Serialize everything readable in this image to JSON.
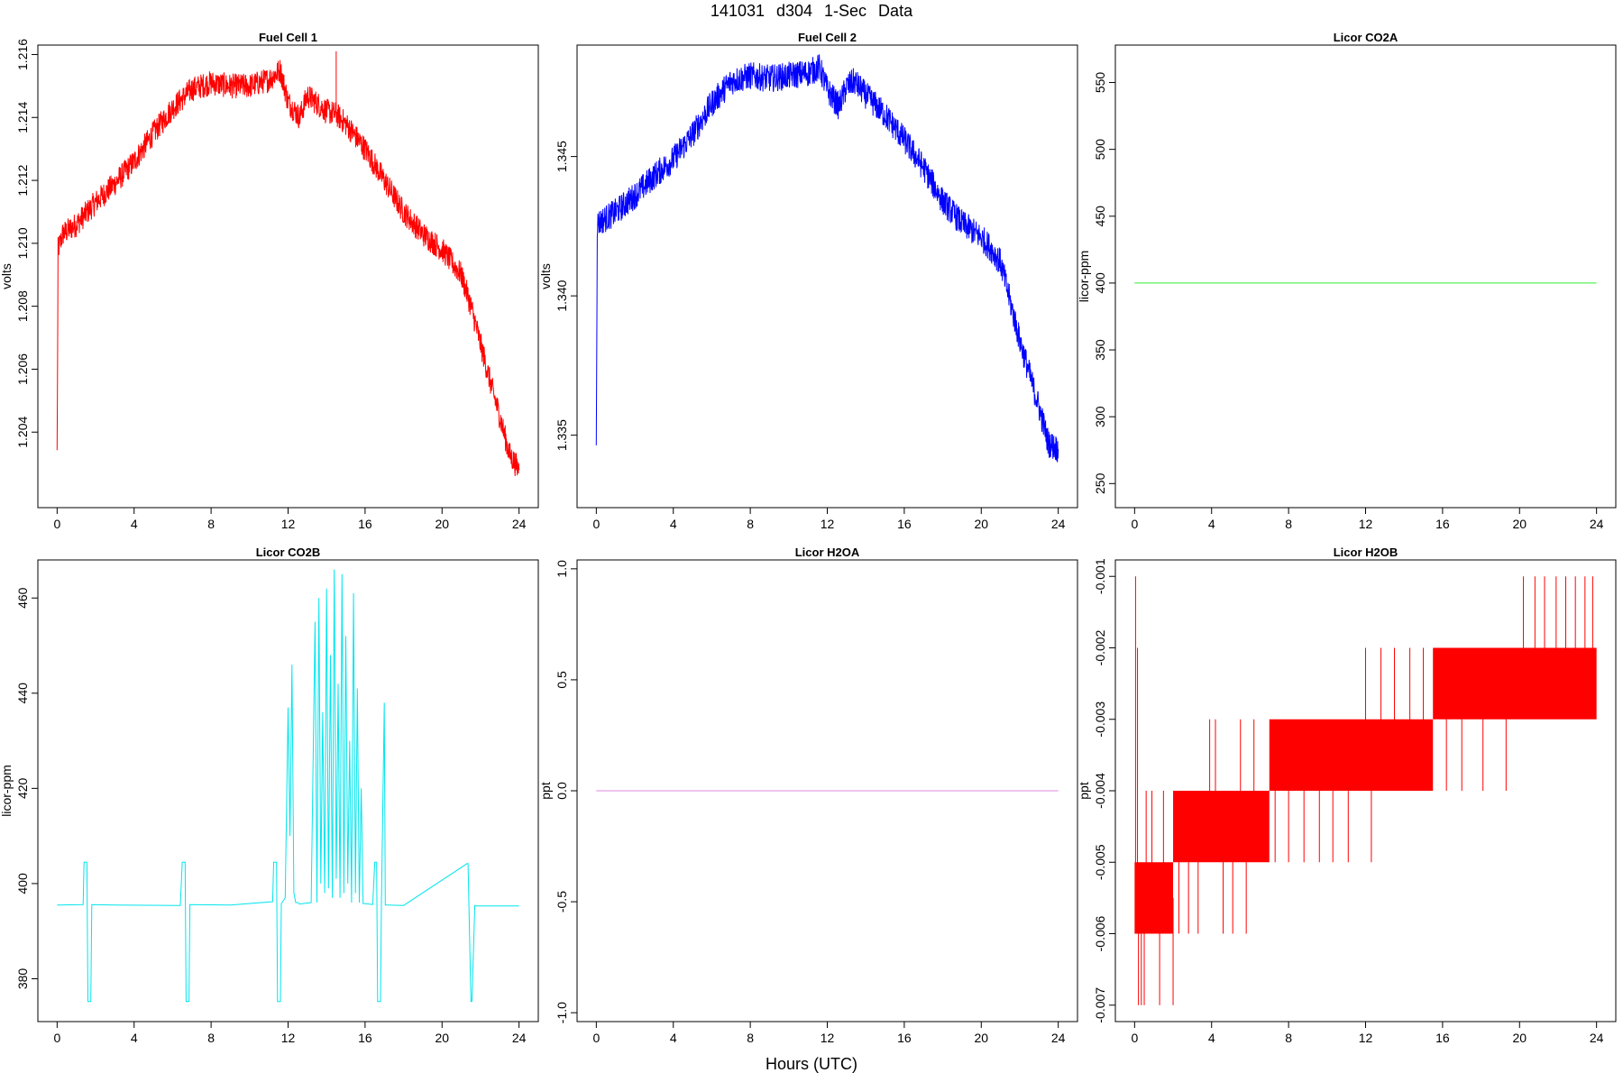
{
  "figure": {
    "title": "141031   d304   1-Sec Data",
    "xlabel": "Hours (UTC)"
  },
  "chart_data": [
    {
      "type": "line",
      "title": "Fuel Cell 1",
      "ylabel": "volts",
      "color": "#ff0000",
      "xlim": [
        -1,
        25
      ],
      "ylim": [
        1.2016,
        1.2163
      ],
      "xticks": [
        0,
        4,
        8,
        12,
        16,
        20,
        24
      ],
      "yticks": [
        1.204,
        1.206,
        1.208,
        1.21,
        1.212,
        1.214,
        1.216
      ],
      "ytick_labels": [
        "1.204",
        "1.206",
        "1.208",
        "1.210",
        "1.212",
        "1.214",
        "1.216"
      ],
      "noise": 0.0004,
      "x": [
        0,
        0.05,
        0.3,
        1,
        2,
        3,
        4,
        5,
        6,
        7,
        8,
        9,
        10,
        11,
        11.6,
        12,
        12.6,
        13,
        14,
        14.5,
        15,
        16,
        17,
        18,
        19,
        20,
        20.5,
        21,
        21.5,
        22,
        22.5,
        23,
        23.5,
        24
      ],
      "values": [
        1.2033,
        1.2098,
        1.2103,
        1.2106,
        1.2113,
        1.2119,
        1.2126,
        1.2135,
        1.2143,
        1.2149,
        1.2151,
        1.215,
        1.215,
        1.2152,
        1.2155,
        1.2145,
        1.214,
        1.2147,
        1.2142,
        1.2141,
        1.2138,
        1.213,
        1.212,
        1.211,
        1.2103,
        1.2098,
        1.2094,
        1.209,
        1.208,
        1.2068,
        1.2056,
        1.2045,
        1.2033,
        1.2028
      ],
      "spikes": [
        {
          "x": 14.5,
          "y": 1.2161
        }
      ]
    },
    {
      "type": "line",
      "title": "Fuel Cell 2",
      "ylabel": "volts",
      "color": "#0000ff",
      "xlim": [
        -1,
        25
      ],
      "ylim": [
        1.3324,
        1.349
      ],
      "xticks": [
        0,
        4,
        8,
        12,
        16,
        20,
        24
      ],
      "yticks": [
        1.335,
        1.34,
        1.345
      ],
      "ytick_labels": [
        "1.335",
        "1.340",
        "1.345"
      ],
      "noise": 0.0005,
      "x": [
        0,
        0.05,
        0.3,
        1,
        2,
        3,
        4,
        5,
        6,
        7,
        8,
        9,
        10,
        11,
        11.6,
        12,
        12.6,
        13,
        13.4,
        14,
        15,
        16,
        17,
        18,
        19,
        20,
        20.5,
        21,
        21.5,
        22,
        22.5,
        23,
        23.5,
        24
      ],
      "values": [
        1.335,
        1.3426,
        1.3427,
        1.343,
        1.3436,
        1.3443,
        1.3449,
        1.3458,
        1.3469,
        1.3477,
        1.3479,
        1.3478,
        1.3479,
        1.348,
        1.3482,
        1.3474,
        1.3468,
        1.3475,
        1.3477,
        1.3472,
        1.3465,
        1.3456,
        1.3446,
        1.3434,
        1.3426,
        1.3421,
        1.3417,
        1.3412,
        1.3398,
        1.3384,
        1.3372,
        1.336,
        1.3347,
        1.3345
      ],
      "spikes": []
    },
    {
      "type": "line",
      "title": "Licor CO2A",
      "ylabel": "licor-ppm",
      "color": "#33ee33",
      "xlim": [
        -1,
        25
      ],
      "ylim": [
        232,
        578
      ],
      "xticks": [
        0,
        4,
        8,
        12,
        16,
        20,
        24
      ],
      "yticks": [
        250,
        300,
        350,
        400,
        450,
        500,
        550
      ],
      "ytick_labels": [
        "250",
        "300",
        "350",
        "400",
        "450",
        "500",
        "550"
      ],
      "noise": 0,
      "x": [
        0,
        24
      ],
      "values": [
        400,
        400
      ],
      "spikes": []
    },
    {
      "type": "line",
      "title": "Licor CO2B",
      "ylabel": "licor-ppm",
      "color": "#00e5ee",
      "xlim": [
        -1,
        25
      ],
      "ylim": [
        371,
        468
      ],
      "xticks": [
        0,
        4,
        8,
        12,
        16,
        20,
        24
      ],
      "yticks": [
        380,
        400,
        420,
        440,
        460
      ],
      "ytick_labels": [
        "380",
        "400",
        "420",
        "440",
        "460"
      ],
      "noise": 0,
      "x": [
        0,
        1.35,
        1.4,
        1.55,
        1.6,
        1.75,
        1.8,
        3,
        6.4,
        6.5,
        6.65,
        6.7,
        6.85,
        6.9,
        9,
        11.2,
        11.25,
        11.4,
        11.45,
        11.6,
        11.65,
        11.85,
        12,
        12.1,
        12.2,
        12.3,
        12.4,
        12.5,
        12.6,
        13.2,
        13.4,
        13.5,
        13.6,
        13.7,
        13.8,
        13.9,
        14,
        14.1,
        14.2,
        14.3,
        14.4,
        14.5,
        14.6,
        14.7,
        14.8,
        14.9,
        15,
        15.1,
        15.2,
        15.3,
        15.4,
        15.5,
        15.6,
        15.7,
        15.8,
        15.9,
        16,
        16.4,
        16.5,
        16.6,
        16.65,
        16.8,
        16.85,
        17,
        17.05,
        17.2,
        18,
        21.3,
        21.35,
        21.5,
        21.55,
        21.7,
        21.75,
        24
      ],
      "values": [
        395.5,
        395.6,
        404.5,
        404.5,
        375.2,
        375.2,
        395.6,
        395.5,
        395.4,
        404.5,
        404.5,
        375.2,
        375.2,
        395.6,
        395.5,
        396.2,
        404.5,
        404.5,
        375.2,
        375.2,
        395.8,
        397.0,
        437.0,
        410.0,
        446.0,
        398.0,
        396.0,
        396.0,
        395.7,
        396.0,
        455.0,
        396.0,
        460.0,
        400.0,
        436.0,
        398.0,
        462.0,
        399.0,
        448.0,
        397.0,
        466.0,
        401.0,
        442.0,
        397.0,
        465.0,
        398.0,
        452.0,
        400.0,
        430.0,
        396.0,
        461.0,
        398.0,
        441.0,
        396.0,
        420.0,
        395.8,
        395.8,
        395.6,
        404.5,
        404.5,
        375.2,
        375.2,
        395.5,
        438.0,
        395.5,
        395.5,
        395.4,
        404.2,
        404.2,
        375.2,
        375.2,
        395.4,
        395.3,
        395.3
      ],
      "spikes": []
    },
    {
      "type": "line",
      "title": "Licor H2OA",
      "ylabel": "ppt",
      "color": "#dd88dd",
      "xlim": [
        -1,
        25
      ],
      "ylim": [
        -1.04,
        1.04
      ],
      "xticks": [
        0,
        4,
        8,
        12,
        16,
        20,
        24
      ],
      "yticks": [
        -1,
        -0.5,
        0,
        0.5,
        1
      ],
      "ytick_labels": [
        "-1.0",
        "-0.5",
        "0.0",
        "0.5",
        "1.0"
      ],
      "noise": 0,
      "x": [
        0,
        24
      ],
      "values": [
        0,
        0
      ],
      "spikes": []
    },
    {
      "type": "line",
      "title": "Licor H2OB",
      "ylabel": "ppt",
      "color": "#ff0000",
      "xlim": [
        -1,
        25
      ],
      "ylim": [
        -0.00723,
        -0.00077
      ],
      "xticks": [
        0,
        4,
        8,
        12,
        16,
        20,
        24
      ],
      "yticks": [
        -0.007,
        -0.006,
        -0.005,
        -0.004,
        -0.003,
        -0.002,
        -0.001
      ],
      "ytick_labels": [
        "-0.007",
        "-0.006",
        "-0.005",
        "-0.004",
        "-0.003",
        "-0.002",
        "-0.001"
      ],
      "noise": 0,
      "x": [
        0,
        24
      ],
      "values": [
        -0.006,
        -0.003
      ],
      "bands": [
        {
          "x0": 0,
          "x1": 2,
          "lo": -0.006,
          "hi": -0.005
        },
        {
          "x0": 2,
          "x1": 7,
          "lo": -0.005,
          "hi": -0.004
        },
        {
          "x0": 7,
          "x1": 15.5,
          "lo": -0.004,
          "hi": -0.003
        },
        {
          "x0": 15.5,
          "x1": 24,
          "lo": -0.003,
          "hi": -0.002
        }
      ],
      "spikes": [
        {
          "x": 0.05,
          "y": -0.001
        },
        {
          "x": 0.15,
          "y": -0.002
        },
        {
          "x": 0.2,
          "y": -0.007
        },
        {
          "x": 0.35,
          "y": -0.007
        },
        {
          "x": 0.5,
          "y": -0.007
        },
        {
          "x": 0.6,
          "y": -0.004
        },
        {
          "x": 0.9,
          "y": -0.004
        },
        {
          "x": 1.3,
          "y": -0.007
        },
        {
          "x": 1.5,
          "y": -0.004
        },
        {
          "x": 2.0,
          "y": -0.007
        },
        {
          "x": 2.3,
          "y": -0.006
        },
        {
          "x": 2.8,
          "y": -0.006
        },
        {
          "x": 3.3,
          "y": -0.006
        },
        {
          "x": 3.9,
          "y": -0.003
        },
        {
          "x": 4.2,
          "y": -0.003
        },
        {
          "x": 4.6,
          "y": -0.006
        },
        {
          "x": 5.1,
          "y": -0.006
        },
        {
          "x": 5.5,
          "y": -0.003
        },
        {
          "x": 5.8,
          "y": -0.006
        },
        {
          "x": 6.2,
          "y": -0.003
        },
        {
          "x": 7.3,
          "y": -0.005
        },
        {
          "x": 8.0,
          "y": -0.005
        },
        {
          "x": 8.8,
          "y": -0.005
        },
        {
          "x": 9.6,
          "y": -0.005
        },
        {
          "x": 10.3,
          "y": -0.005
        },
        {
          "x": 11.1,
          "y": -0.005
        },
        {
          "x": 12.0,
          "y": -0.002
        },
        {
          "x": 12.3,
          "y": -0.005
        },
        {
          "x": 12.8,
          "y": -0.002
        },
        {
          "x": 13.5,
          "y": -0.002
        },
        {
          "x": 14.3,
          "y": -0.002
        },
        {
          "x": 15.0,
          "y": -0.002
        },
        {
          "x": 16.2,
          "y": -0.004
        },
        {
          "x": 17.0,
          "y": -0.004
        },
        {
          "x": 18.1,
          "y": -0.004
        },
        {
          "x": 19.3,
          "y": -0.004
        },
        {
          "x": 20.2,
          "y": -0.001
        },
        {
          "x": 20.8,
          "y": -0.001
        },
        {
          "x": 21.3,
          "y": -0.001
        },
        {
          "x": 21.9,
          "y": -0.001
        },
        {
          "x": 22.4,
          "y": -0.001
        },
        {
          "x": 22.9,
          "y": -0.001
        },
        {
          "x": 23.4,
          "y": -0.001
        },
        {
          "x": 23.8,
          "y": -0.001
        }
      ]
    }
  ]
}
